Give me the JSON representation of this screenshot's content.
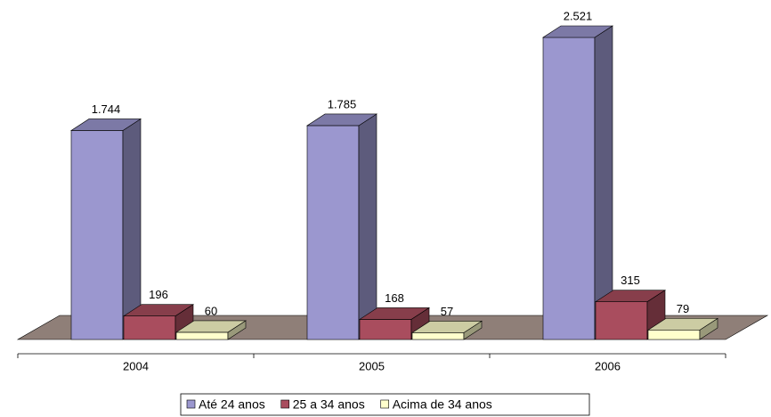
{
  "chart_data": {
    "type": "bar3d",
    "categories": [
      "2004",
      "2005",
      "2006"
    ],
    "series": [
      {
        "name": "Até 24 anos",
        "color": "#9b97cf",
        "values": [
          1744,
          1785,
          2521
        ],
        "value_labels": [
          "1.744",
          "1.785",
          "2.521"
        ]
      },
      {
        "name": "25 a 34 anos",
        "color": "#a94d5e",
        "values": [
          196,
          168,
          315
        ]
      },
      {
        "name": "Acima de 34 anos",
        "color": "#ffffcc",
        "values": [
          60,
          57,
          79
        ]
      }
    ],
    "legend": "bottom"
  }
}
